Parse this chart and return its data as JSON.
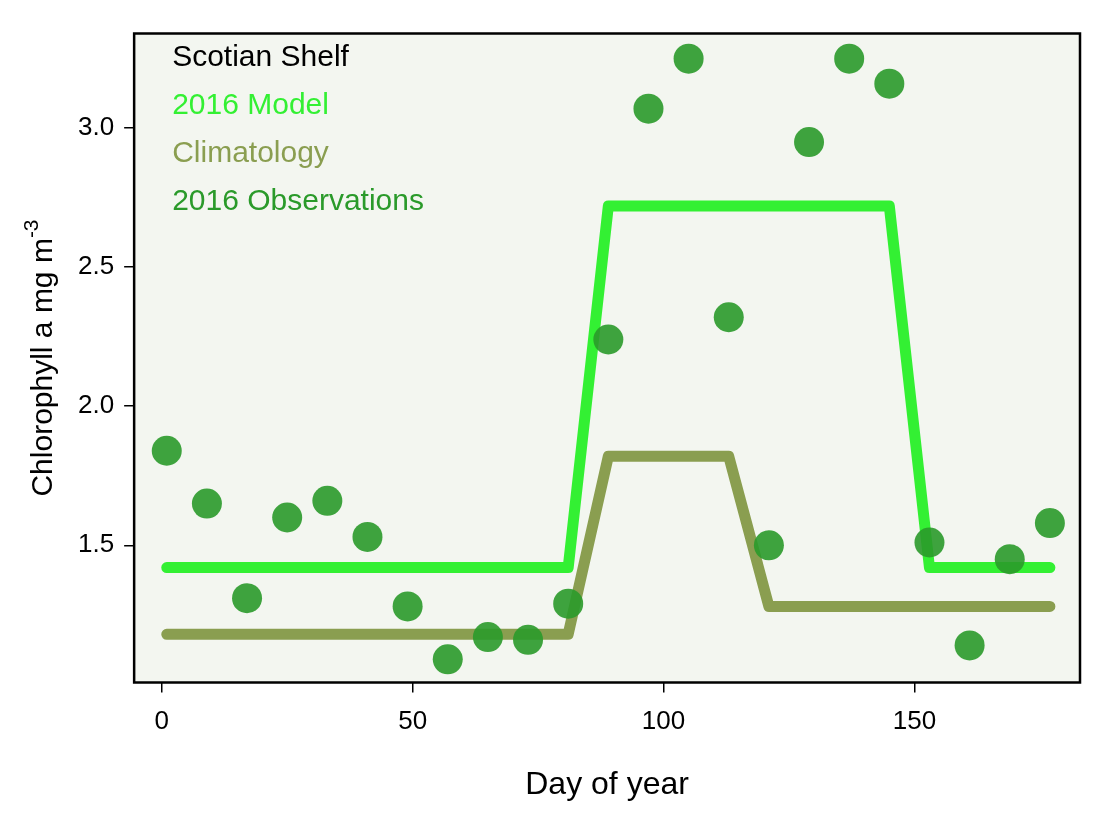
{
  "chart_data": {
    "type": "scatter",
    "xlabel": "Day of year",
    "ylabel": "Chlorophyll a mg m$^{-3}$",
    "legend_title": "Scotian Shelf",
    "legend": "top left",
    "grid": false,
    "xlim": [
      -5.5,
      183
    ],
    "ylim": [
      1.007,
      3.34
    ],
    "xticks": [
      0,
      50,
      100,
      150
    ],
    "yticks": [
      {
        "value": 1.5,
        "label": "1.5"
      },
      {
        "value": 2,
        "label": "2.0"
      },
      {
        "value": 2.5,
        "label": "2.5"
      },
      {
        "value": 3,
        "label": "3.0"
      }
    ],
    "series": [
      {
        "name": "2016 Model",
        "type": "line",
        "color": "#33f033",
        "marker": "none",
        "x": [
          1,
          81,
          89,
          145,
          153,
          177
        ],
        "values": [
          1.42,
          1.42,
          2.72,
          2.72,
          1.42,
          1.42
        ]
      },
      {
        "name": "Climatology",
        "type": "line",
        "color": "#8a9e50",
        "marker": "none",
        "x": [
          1,
          81,
          89,
          113,
          121,
          177
        ],
        "values": [
          1.18,
          1.18,
          1.82,
          1.82,
          1.28,
          1.28
        ]
      },
      {
        "name": "2016 Observations",
        "type": "scatter",
        "color": "#2a9a2a",
        "marker": "circle",
        "x": [
          1,
          9,
          17,
          25,
          33,
          41,
          49,
          57,
          65,
          73,
          81,
          89,
          97,
          105,
          113,
          121,
          129,
          137,
          145,
          153,
          161,
          169,
          177
        ],
        "values": [
          1.84,
          1.65,
          1.31,
          1.6,
          1.66,
          1.53,
          1.28,
          1.09,
          1.17,
          1.16,
          1.29,
          2.24,
          3.07,
          3.25,
          2.32,
          1.5,
          2.95,
          3.25,
          3.16,
          1.51,
          1.14,
          1.45,
          1.58
        ]
      }
    ]
  }
}
